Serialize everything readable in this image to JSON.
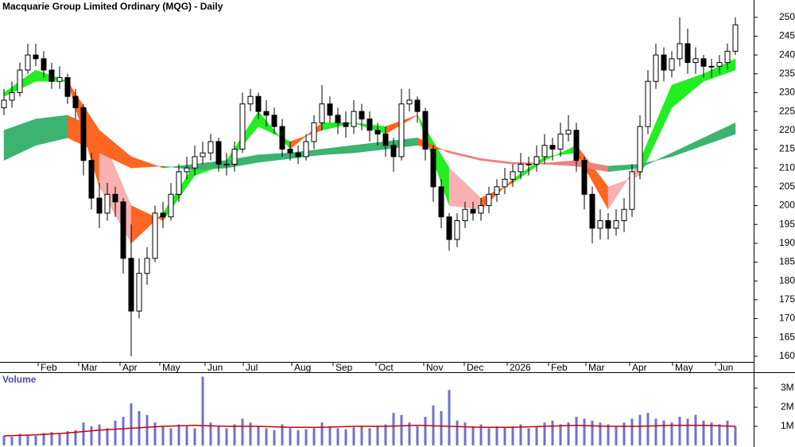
{
  "chart_data": [
    {
      "type": "candlestick",
      "title": "Macquarie Group Limited Ordinary (MQG) - Daily",
      "up_color": "#ffffff",
      "down_color": "#000000",
      "open": [
        226,
        228,
        230,
        236,
        240,
        239,
        236,
        233,
        234,
        229,
        226,
        212,
        202,
        198,
        203,
        201,
        186,
        172,
        182,
        186,
        198,
        197,
        203,
        209,
        210,
        213,
        214,
        217,
        211,
        211,
        215,
        227,
        229,
        225,
        224,
        221,
        215,
        214,
        213,
        217,
        222,
        227,
        224,
        222,
        221,
        225,
        223,
        220,
        219,
        216,
        213,
        227,
        228,
        225,
        215,
        205,
        197,
        191,
        196,
        199,
        198,
        200,
        203,
        205,
        207,
        209,
        211,
        211,
        213,
        216,
        215,
        219,
        220,
        212,
        203,
        194,
        196,
        194,
        196,
        199,
        209,
        221,
        233,
        240,
        236,
        239,
        243,
        238,
        239,
        237,
        237,
        238,
        241
      ],
      "high": [
        231,
        233,
        238,
        243,
        243,
        241,
        238,
        237,
        235,
        231,
        227,
        214,
        206,
        206,
        205,
        202,
        195,
        186,
        189,
        200,
        201,
        206,
        211,
        213,
        216,
        217,
        219,
        218,
        214,
        217,
        230,
        231,
        230,
        228,
        226,
        223,
        217,
        216,
        219,
        224,
        232,
        229,
        226,
        225,
        228,
        227,
        225,
        222,
        221,
        218,
        231,
        231,
        229,
        226,
        216,
        207,
        198,
        198,
        201,
        201,
        202,
        205,
        207,
        210,
        211,
        214,
        213,
        216,
        219,
        218,
        222,
        224,
        222,
        213,
        205,
        199,
        198,
        199,
        202,
        211,
        224,
        236,
        243,
        242,
        241,
        250,
        247,
        242,
        240,
        239,
        240,
        243,
        250
      ],
      "low": [
        224,
        226,
        229,
        235,
        237,
        234,
        231,
        231,
        227,
        223,
        208,
        199,
        194,
        196,
        197,
        182,
        160,
        170,
        179,
        185,
        194,
        196,
        201,
        207,
        208,
        211,
        212,
        209,
        208,
        209,
        214,
        225,
        223,
        221,
        219,
        213,
        212,
        211,
        212,
        215,
        220,
        222,
        219,
        218,
        219,
        220,
        217,
        216,
        213,
        209,
        212,
        225,
        222,
        212,
        201,
        194,
        188,
        189,
        194,
        196,
        196,
        198,
        201,
        203,
        205,
        207,
        208,
        209,
        211,
        212,
        213,
        217,
        209,
        199,
        190,
        191,
        191,
        192,
        193,
        197,
        207,
        219,
        231,
        233,
        234,
        237,
        235,
        235,
        234,
        234,
        235,
        236,
        240
      ],
      "close": [
        228,
        230,
        236,
        240,
        239,
        236,
        233,
        234,
        229,
        226,
        212,
        202,
        198,
        203,
        201,
        186,
        172,
        182,
        186,
        198,
        197,
        203,
        209,
        210,
        213,
        214,
        217,
        211,
        211,
        215,
        227,
        229,
        225,
        224,
        221,
        215,
        214,
        213,
        217,
        222,
        227,
        224,
        222,
        221,
        225,
        223,
        220,
        219,
        216,
        213,
        227,
        228,
        225,
        215,
        205,
        197,
        191,
        196,
        199,
        198,
        200,
        203,
        205,
        207,
        209,
        211,
        211,
        213,
        216,
        215,
        219,
        220,
        212,
        203,
        194,
        196,
        194,
        196,
        199,
        209,
        221,
        233,
        240,
        236,
        239,
        243,
        238,
        239,
        237,
        237,
        238,
        241,
        248
      ],
      "ribbons": [
        {
          "x": [
            0,
            4,
            8,
            12,
            16,
            20,
            24,
            28,
            32,
            36,
            40,
            44,
            48,
            52,
            56,
            60,
            64,
            68,
            72,
            76,
            80,
            84,
            88,
            92
          ],
          "fast": [
            230,
            236,
            233,
            205,
            190,
            198,
            211,
            212,
            225,
            215,
            222,
            222,
            219,
            224,
            200,
            199,
            207,
            213,
            214,
            199,
            212,
            232,
            235,
            239
          ],
          "slow": [
            229,
            233,
            233,
            220,
            200,
            196,
            208,
            211,
            221,
            217,
            220,
            222,
            221,
            224,
            210,
            202,
            206,
            212,
            216,
            205,
            208,
            226,
            233,
            236
          ],
          "colors": [
            "#22ee22",
            "#22ee22",
            "#ff6622",
            "#f8b0b0",
            "#ff6622",
            "#22ee22",
            "#22ee22",
            "#22ee22",
            "#22ee22",
            "#ff6622",
            "#22ee22",
            "#22ee22",
            "#ff6622",
            "#22ee22",
            "#f8b0b0",
            "#ff6622",
            "#22ee22",
            "#22ee22",
            "#ff6622",
            "#f8b0b0",
            "#22ee22",
            "#22ee22",
            "#22ee22",
            "#22ee22"
          ]
        },
        {
          "x": [
            0,
            4,
            8,
            12,
            16,
            20,
            24,
            28,
            32,
            36,
            40,
            44,
            48,
            52,
            56,
            60,
            64,
            68,
            72,
            76,
            80,
            84,
            88,
            92
          ],
          "fast": [
            220,
            223,
            224,
            220,
            213,
            210,
            211,
            212,
            213.5,
            214,
            215,
            216,
            217,
            218,
            214,
            212,
            211,
            211,
            210.5,
            209,
            210,
            214,
            218,
            222
          ],
          "slow": [
            212,
            216,
            218,
            214,
            210,
            210.5,
            209.5,
            210,
            211.5,
            212.5,
            213.5,
            214,
            215,
            216,
            214.5,
            212.5,
            211.5,
            211.3,
            212,
            210.5,
            211,
            213,
            216,
            219
          ],
          "colors": [
            "#3cb371",
            "#3cb371",
            "#ff6622",
            "#ff6622",
            "#ff6622",
            "#3cb371",
            "#3cb371",
            "#3cb371",
            "#3cb371",
            "#3cb371",
            "#3cb371",
            "#3cb371",
            "#3cb371",
            "#ff6622",
            "#f08080",
            "#f08080",
            "#f08080",
            "#f08080",
            "#f08080",
            "#3cb371",
            "#3cb371",
            "#3cb371",
            "#3cb371",
            "#3cb371"
          ]
        }
      ],
      "xlim": [
        -0.5,
        94.3
      ],
      "xticks": [
        {
          "value": 4.3,
          "label": "Feb"
        },
        {
          "value": 9.4,
          "label": "Mar"
        },
        {
          "value": 14.6,
          "label": "Apr"
        },
        {
          "value": 19.6,
          "label": "May"
        },
        {
          "value": 25.3,
          "label": "Jun"
        },
        {
          "value": 30.1,
          "label": "Jul"
        },
        {
          "value": 36.2,
          "label": "Aug"
        },
        {
          "value": 41.4,
          "label": "Sep"
        },
        {
          "value": 46.8,
          "label": "Oct"
        },
        {
          "value": 52.8,
          "label": "Nov"
        },
        {
          "value": 57.9,
          "label": "Dec"
        },
        {
          "value": 63.3,
          "label": "2026"
        },
        {
          "value": 68.5,
          "label": "Feb"
        },
        {
          "value": 73.2,
          "label": "Mar"
        },
        {
          "value": 78.7,
          "label": "Apr"
        },
        {
          "value": 84.1,
          "label": "May"
        },
        {
          "value": 89.5,
          "label": "Jun"
        }
      ],
      "ylim": [
        158.5,
        254.6
      ],
      "yticks": [
        160,
        165,
        170,
        175,
        180,
        185,
        190,
        195,
        200,
        205,
        210,
        215,
        220,
        225,
        230,
        235,
        240,
        245,
        250
      ]
    },
    {
      "type": "bar",
      "title": "Volume",
      "color": "#7070d0",
      "values": [
        500000,
        450000,
        600000,
        550000,
        500000,
        650000,
        700000,
        600000,
        750000,
        800000,
        1200000,
        1000000,
        1100000,
        900000,
        1300000,
        1500000,
        2200000,
        1800000,
        1600000,
        1200000,
        1000000,
        900000,
        1100000,
        1000000,
        900000,
        3600000,
        1200000,
        1000000,
        900000,
        1100000,
        1400000,
        1200000,
        1000000,
        900000,
        800000,
        1100000,
        900000,
        800000,
        850000,
        900000,
        1200000,
        1000000,
        900000,
        850000,
        950000,
        1000000,
        900000,
        1000000,
        1100000,
        1700000,
        1600000,
        1200000,
        1000000,
        1500000,
        2100000,
        1800000,
        2900000,
        1300000,
        1200000,
        1000000,
        1100000,
        900000,
        1000000,
        950000,
        1000000,
        1100000,
        900000,
        1000000,
        1200000,
        1300000,
        1100000,
        1200000,
        1500000,
        1400000,
        1300000,
        1200000,
        1100000,
        1000000,
        1200000,
        1400000,
        1600000,
        1700000,
        1400000,
        1300000,
        1200000,
        1500000,
        1400000,
        1600000,
        1300000,
        1200000,
        1100000,
        1300000,
        1000000
      ],
      "line": {
        "color": "#cc0000",
        "x": [
          0,
          4,
          8,
          12,
          16,
          20,
          24,
          28,
          32,
          36,
          40,
          44,
          48,
          52,
          56,
          60,
          64,
          68,
          72,
          76,
          80,
          84,
          88,
          92
        ],
        "values": [
          500000,
          550000,
          650000,
          800000,
          900000,
          1000000,
          1050000,
          1000000,
          1000000,
          950000,
          950000,
          1000000,
          1000000,
          1050000,
          1000000,
          950000,
          950000,
          1000000,
          1050000,
          1000000,
          1000000,
          1050000,
          1050000,
          1000000
        ]
      },
      "xlim": [
        -0.5,
        94.3
      ],
      "ylim": [
        0,
        3750000
      ],
      "yticks": [
        {
          "value": 1000000,
          "label": "1M"
        },
        {
          "value": 2000000,
          "label": "2M"
        },
        {
          "value": 3000000,
          "label": "3M"
        }
      ]
    }
  ]
}
